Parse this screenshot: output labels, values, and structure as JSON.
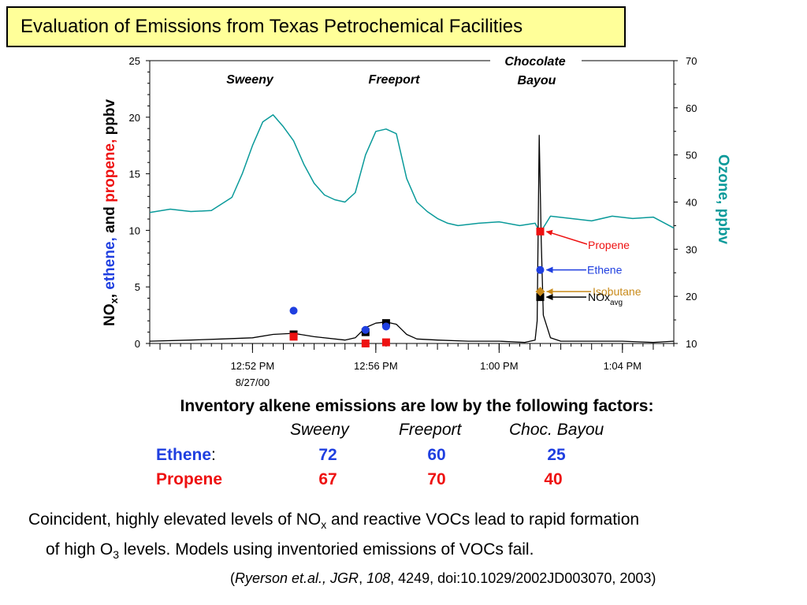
{
  "header": {
    "title": "Evaluation of Emissions from Texas Petrochemical Facilities"
  },
  "chart_data": {
    "type": "line",
    "left_axis": {
      "label_parts": [
        "NO",
        "x",
        ", ",
        "ethene,",
        " and ",
        "propene,",
        " ppbv"
      ],
      "ticks": [
        "0",
        "5",
        "10",
        "15",
        "20",
        "25"
      ],
      "range": [
        0,
        25
      ]
    },
    "right_axis": {
      "label": "Ozone, ppbv",
      "ticks": [
        "10",
        "20",
        "30",
        "40",
        "50",
        "60",
        "70"
      ],
      "range": [
        10,
        70
      ]
    },
    "x_axis": {
      "tick_labels": [
        "12:52 PM",
        "12:56 PM",
        "1:00 PM",
        "1:04 PM"
      ],
      "date_label": "8/27/00",
      "range": [
        "12:48:40",
        "1:05:40"
      ]
    },
    "site_labels": {
      "sweeny": "Sweeny",
      "freeport": "Freeport",
      "chocolate_1": "Chocolate",
      "chocolate_2": "Bayou"
    },
    "ozone": {
      "color": "#0a9a9a",
      "x": [
        "12:48:40",
        "12:49:20",
        "12:50:00",
        "12:50:40",
        "12:51:20",
        "12:51:40",
        "12:52:00",
        "12:52:20",
        "12:52:40",
        "12:53:00",
        "12:53:20",
        "12:53:40",
        "12:54:00",
        "12:54:20",
        "12:54:40",
        "12:55:00",
        "12:55:20",
        "12:55:40",
        "12:56:00",
        "12:56:20",
        "12:56:40",
        "12:57:00",
        "12:57:20",
        "12:57:40",
        "12:58:00",
        "12:58:20",
        "12:58:40",
        "12:59:20",
        "1:00:00",
        "1:00:40",
        "1:01:10",
        "1:01:20",
        "1:01:40",
        "1:02:20",
        "1:03:00",
        "1:03:40",
        "1:04:20",
        "1:05:00",
        "1:05:40"
      ],
      "y": [
        37.8,
        38.5,
        38.0,
        38.2,
        41.0,
        46.0,
        52.0,
        57.0,
        58.5,
        56.0,
        53.0,
        48.0,
        44.0,
        41.5,
        40.5,
        40.0,
        42.0,
        50.0,
        55.0,
        55.5,
        54.5,
        45.0,
        40.0,
        38.0,
        36.5,
        35.5,
        35.0,
        35.5,
        35.8,
        35.0,
        35.5,
        33.5,
        37.0,
        36.5,
        36.0,
        37.0,
        36.5,
        36.8,
        34.5
      ]
    },
    "nox": {
      "color": "#000000",
      "x": [
        "12:48:40",
        "12:50:00",
        "12:51:00",
        "12:52:00",
        "12:52:40",
        "12:53:20",
        "12:54:00",
        "12:55:00",
        "12:55:20",
        "12:55:40",
        "12:56:00",
        "12:56:20",
        "12:56:40",
        "12:57:00",
        "12:57:20",
        "12:58:00",
        "12:59:00",
        "1:00:00",
        "1:00:50",
        "1:01:10",
        "1:01:14",
        "1:01:18",
        "1:01:22",
        "1:01:26",
        "1:01:40",
        "1:02:00",
        "1:03:00",
        "1:04:00",
        "1:05:00",
        "1:05:40"
      ],
      "y": [
        0.2,
        0.3,
        0.4,
        0.5,
        0.8,
        0.9,
        0.6,
        0.3,
        0.5,
        1.4,
        1.8,
        1.9,
        1.7,
        0.8,
        0.4,
        0.3,
        0.2,
        0.2,
        0.1,
        0.3,
        2.0,
        18.4,
        9.0,
        2.5,
        0.5,
        0.2,
        0.2,
        0.2,
        0.1,
        0.2
      ]
    },
    "propene": {
      "name": "Propene",
      "color": "#ee1111",
      "points": [
        {
          "x": "12:53:20",
          "y": 0.6
        },
        {
          "x": "12:55:40",
          "y": 0.0
        },
        {
          "x": "12:56:20",
          "y": 0.1
        },
        {
          "x": "1:01:20",
          "y": 9.9
        }
      ]
    },
    "ethene": {
      "name": "Ethene",
      "color": "#1f3fe0",
      "points": [
        {
          "x": "12:53:20",
          "y": 2.9
        },
        {
          "x": "12:55:40",
          "y": 1.2
        },
        {
          "x": "12:56:20",
          "y": 1.5
        },
        {
          "x": "1:01:20",
          "y": 6.5
        }
      ]
    },
    "nox_avg": {
      "name": "NOx",
      "subscript": "avg",
      "color": "#000000",
      "points": [
        {
          "x": "12:53:20",
          "y": 0.8
        },
        {
          "x": "12:55:40",
          "y": 1.0
        },
        {
          "x": "12:56:20",
          "y": 1.8
        },
        {
          "x": "1:01:20",
          "y": 4.1
        }
      ]
    },
    "isobutane": {
      "name": "Isobutane",
      "color": "#c88a1a",
      "x": "1:01:20",
      "y": 21.0
    }
  },
  "summary": {
    "title": "Inventory alkene emissions are low by the following factors:",
    "sites": [
      "Sweeny",
      "Freeport",
      "Choc. Bayou"
    ],
    "rows": [
      {
        "label": "Ethene",
        "suffix": ":",
        "values": [
          "72",
          "60",
          "25"
        ]
      },
      {
        "label": "Propene",
        "suffix": "",
        "values": [
          "67",
          "70",
          "40"
        ]
      }
    ]
  },
  "paragraph": {
    "p1": "Coincident, highly elevated levels of NO",
    "sub1": "x",
    "p2": " and reactive VOCs lead to rapid formation",
    "p3": "of high O",
    "sub2": "3",
    "p4": " levels.  Models using inventoried emissions of VOCs fail."
  },
  "citation": {
    "open": "(",
    "authors": "Ryerson et.al., JGR",
    "comma1": ", ",
    "volume": "108",
    "rest": ", 4249, doi:10.1029/2002JD003070, 2003)"
  }
}
